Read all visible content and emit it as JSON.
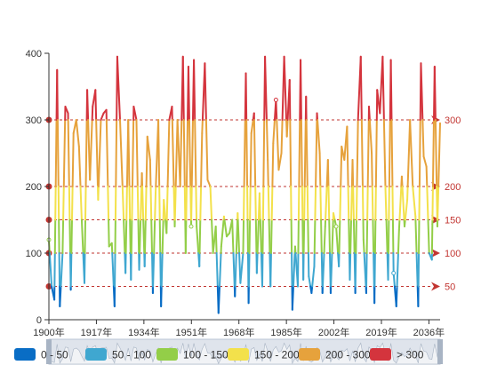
{
  "chart_data": {
    "type": "line",
    "x_start_year": 1900,
    "x_end_year": 2040,
    "x_tick_labels": [
      "1900年",
      "1917年",
      "1934年",
      "1951年",
      "1968年",
      "1985年",
      "2002年",
      "2019年",
      "2036年"
    ],
    "y_tick_labels": [
      "0",
      "100",
      "200",
      "300",
      "400"
    ],
    "ylim": [
      0,
      400
    ],
    "grid": false,
    "mark_lines": [
      {
        "value": 50,
        "label": "50"
      },
      {
        "value": 100,
        "label": "100"
      },
      {
        "value": 150,
        "label": "150"
      },
      {
        "value": 200,
        "label": "200"
      },
      {
        "value": 300,
        "label": "300"
      }
    ],
    "visual_map_pieces": [
      {
        "label": "0 - 50",
        "min": 0,
        "max": 50,
        "color": "#096dc5"
      },
      {
        "label": "50 - 100",
        "min": 50,
        "max": 100,
        "color": "#3fa7d0"
      },
      {
        "label": "100 - 150",
        "min": 100,
        "max": 150,
        "color": "#93ce48"
      },
      {
        "label": "150 - 200",
        "min": 150,
        "max": 200,
        "color": "#f3e14b"
      },
      {
        "label": "200 - 300",
        "min": 200,
        "max": 300,
        "color": "#e6a23c"
      },
      {
        "label": "> 300",
        "min": 300,
        "max": 400,
        "color": "#d4343d"
      }
    ],
    "series": [
      {
        "values": [
          120,
          50,
          30,
          375,
          20,
          100,
          320,
          310,
          45,
          280,
          300,
          260,
          150,
          55,
          345,
          210,
          320,
          345,
          180,
          300,
          310,
          315,
          110,
          115,
          20,
          395,
          300,
          190,
          70,
          300,
          60,
          320,
          300,
          75,
          220,
          80,
          275,
          240,
          40,
          190,
          300,
          20,
          180,
          130,
          300,
          320,
          140,
          300,
          200,
          395,
          100,
          380,
          140,
          390,
          140,
          80,
          280,
          385,
          210,
          200,
          100,
          140,
          10,
          110,
          155,
          125,
          130,
          150,
          35,
          160,
          55,
          100,
          370,
          25,
          280,
          310,
          70,
          190,
          50,
          395,
          240,
          50,
          265,
          330,
          225,
          250,
          395,
          275,
          360,
          15,
          110,
          50,
          390,
          60,
          335,
          65,
          40,
          80,
          310,
          250,
          40,
          140,
          240,
          40,
          160,
          140,
          80,
          260,
          240,
          290,
          60,
          240,
          40,
          300,
          395,
          120,
          40,
          320,
          250,
          25,
          345,
          310,
          395,
          200,
          60,
          390,
          70,
          20,
          135,
          215,
          140,
          180,
          300,
          200,
          155,
          20,
          385,
          245,
          230,
          100,
          90,
          380,
          140,
          295
        ]
      }
    ]
  }
}
